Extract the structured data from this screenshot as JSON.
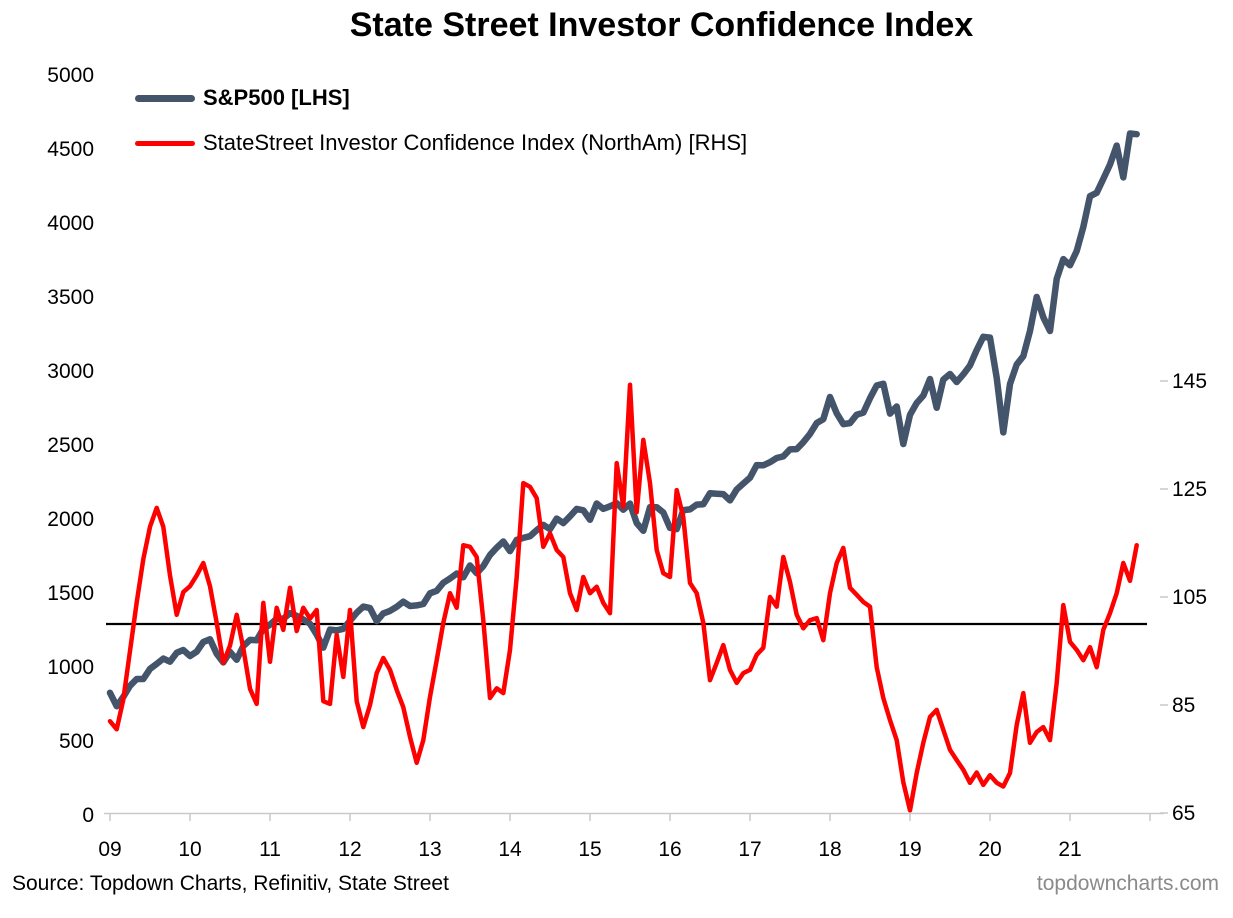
{
  "title": "State Street Investor Confidence Index",
  "legend": [
    {
      "label": "S&P500 [LHS]",
      "color": "#44546A",
      "bold": true
    },
    {
      "label": "StateStreet Investor Confidence Index (NorthAm) [RHS]",
      "color": "#FF0000",
      "bold": false
    }
  ],
  "source": "Source: Topdown Charts, Refinitiv, State Street",
  "watermark": "topdowncharts.com",
  "colors": {
    "sp500_line": "#44546A",
    "ici_line": "#FF0000",
    "reference_line": "#000000",
    "axis": "#c9c9c9",
    "watermark_text": "#8a8a8a"
  },
  "chart_data": {
    "type": "line",
    "title": "State Street Investor Confidence Index",
    "x_start": "2009-01",
    "x_end": "2021-11",
    "x_frequency": "monthly",
    "x_tick_labels": [
      "09",
      "10",
      "11",
      "12",
      "13",
      "14",
      "15",
      "16",
      "17",
      "18",
      "19",
      "20",
      "21"
    ],
    "left_axis": {
      "min": 0,
      "max": 5000,
      "ticks": [
        5000,
        4500,
        4000,
        3500,
        3000,
        2500,
        2000,
        1500,
        1000,
        500,
        0
      ]
    },
    "right_axis": {
      "min": 65,
      "max": 145,
      "ticks": [
        145,
        125,
        105,
        85,
        65
      ]
    },
    "reference_line": {
      "axis": "right",
      "value": 100,
      "color": "#000000"
    },
    "grid": false,
    "legend_position": "top-left",
    "series": [
      {
        "name": "S&P500 [LHS]",
        "axis": "left",
        "color": "#44546A",
        "stroke_width": 6.5,
        "values": [
          826,
          735,
          798,
          873,
          919,
          919,
          987,
          1021,
          1057,
          1036,
          1096,
          1115,
          1074,
          1104,
          1169,
          1187,
          1089,
          1031,
          1102,
          1049,
          1141,
          1183,
          1181,
          1258,
          1286,
          1327,
          1326,
          1364,
          1345,
          1321,
          1292,
          1219,
          1131,
          1253,
          1247,
          1258,
          1312,
          1366,
          1408,
          1398,
          1310,
          1362,
          1379,
          1407,
          1441,
          1412,
          1416,
          1426,
          1498,
          1515,
          1569,
          1598,
          1631,
          1606,
          1686,
          1633,
          1682,
          1757,
          1806,
          1848,
          1783,
          1859,
          1872,
          1884,
          1924,
          1960,
          1931,
          2003,
          1972,
          2018,
          2068,
          2059,
          1995,
          2105,
          2068,
          2086,
          2107,
          2063,
          2104,
          1972,
          1920,
          2079,
          2080,
          2044,
          1940,
          1932,
          2060,
          2065,
          2097,
          2099,
          2174,
          2171,
          2168,
          2126,
          2199,
          2239,
          2279,
          2364,
          2363,
          2384,
          2412,
          2423,
          2470,
          2472,
          2519,
          2575,
          2648,
          2674,
          2824,
          2714,
          2641,
          2648,
          2705,
          2718,
          2816,
          2902,
          2914,
          2712,
          2760,
          2507,
          2704,
          2784,
          2834,
          2946,
          2752,
          2942,
          2980,
          2926,
          2977,
          3038,
          3141,
          3231,
          3226,
          2954,
          2585,
          2912,
          3044,
          3100,
          3271,
          3500,
          3363,
          3270,
          3622,
          3756,
          3714,
          3811,
          3973,
          4181,
          4204,
          4298,
          4395,
          4523,
          4308,
          4605,
          4600
        ]
      },
      {
        "name": "StateStreet Investor Confidence Index (NorthAm) [RHS]",
        "axis": "right",
        "color": "#FF0000",
        "stroke_width": 4.5,
        "values": [
          82,
          80.5,
          86,
          95,
          104,
          112,
          118,
          121.5,
          118,
          109,
          101.7,
          105.9,
          107,
          109,
          111.3,
          107,
          100.2,
          92.8,
          96,
          101.7,
          95.5,
          88,
          85.2,
          103.9,
          93,
          103,
          98.9,
          106.7,
          98.7,
          103,
          101,
          102.6,
          85.7,
          85.2,
          98,
          90.2,
          102.6,
          85.7,
          80.9,
          85,
          90.9,
          93.7,
          91.5,
          87.8,
          84.6,
          79.1,
          74.3,
          78.5,
          86.5,
          93.3,
          100.2,
          105.7,
          103,
          114.6,
          114.3,
          112.4,
          100.7,
          86.3,
          88.1,
          87.2,
          95.2,
          108.7,
          126.1,
          125.4,
          123.3,
          114.3,
          116.8,
          113.7,
          112.4,
          105.7,
          102.6,
          108.7,
          105.7,
          106.9,
          103.9,
          102,
          129.8,
          121.7,
          144.3,
          120.7,
          134.1,
          126.1,
          113.7,
          109.4,
          108.7,
          124.8,
          119.8,
          107.6,
          105.7,
          100.2,
          89.6,
          92.8,
          96.1,
          91.5,
          89.1,
          90.9,
          91.5,
          94.3,
          95.6,
          105,
          103.2,
          112.4,
          107.8,
          101.7,
          99.2,
          100.7,
          101.1,
          97,
          105.7,
          111.3,
          114.1,
          106.7,
          105.4,
          104.1,
          103.2,
          92,
          86.3,
          82.2,
          78.5,
          70.7,
          65.5,
          72.4,
          78,
          82.8,
          84.1,
          80.4,
          76.7,
          74.8,
          73,
          70.6,
          72.5,
          70.2,
          72,
          70.6,
          69.9,
          72.4,
          81.3,
          87.2,
          78,
          80,
          80.9,
          78.5,
          89.1,
          103.5,
          96.7,
          95.2,
          93.3,
          95.7,
          92,
          98.9,
          102,
          105.7,
          111.3,
          108,
          114.6
        ]
      }
    ]
  }
}
